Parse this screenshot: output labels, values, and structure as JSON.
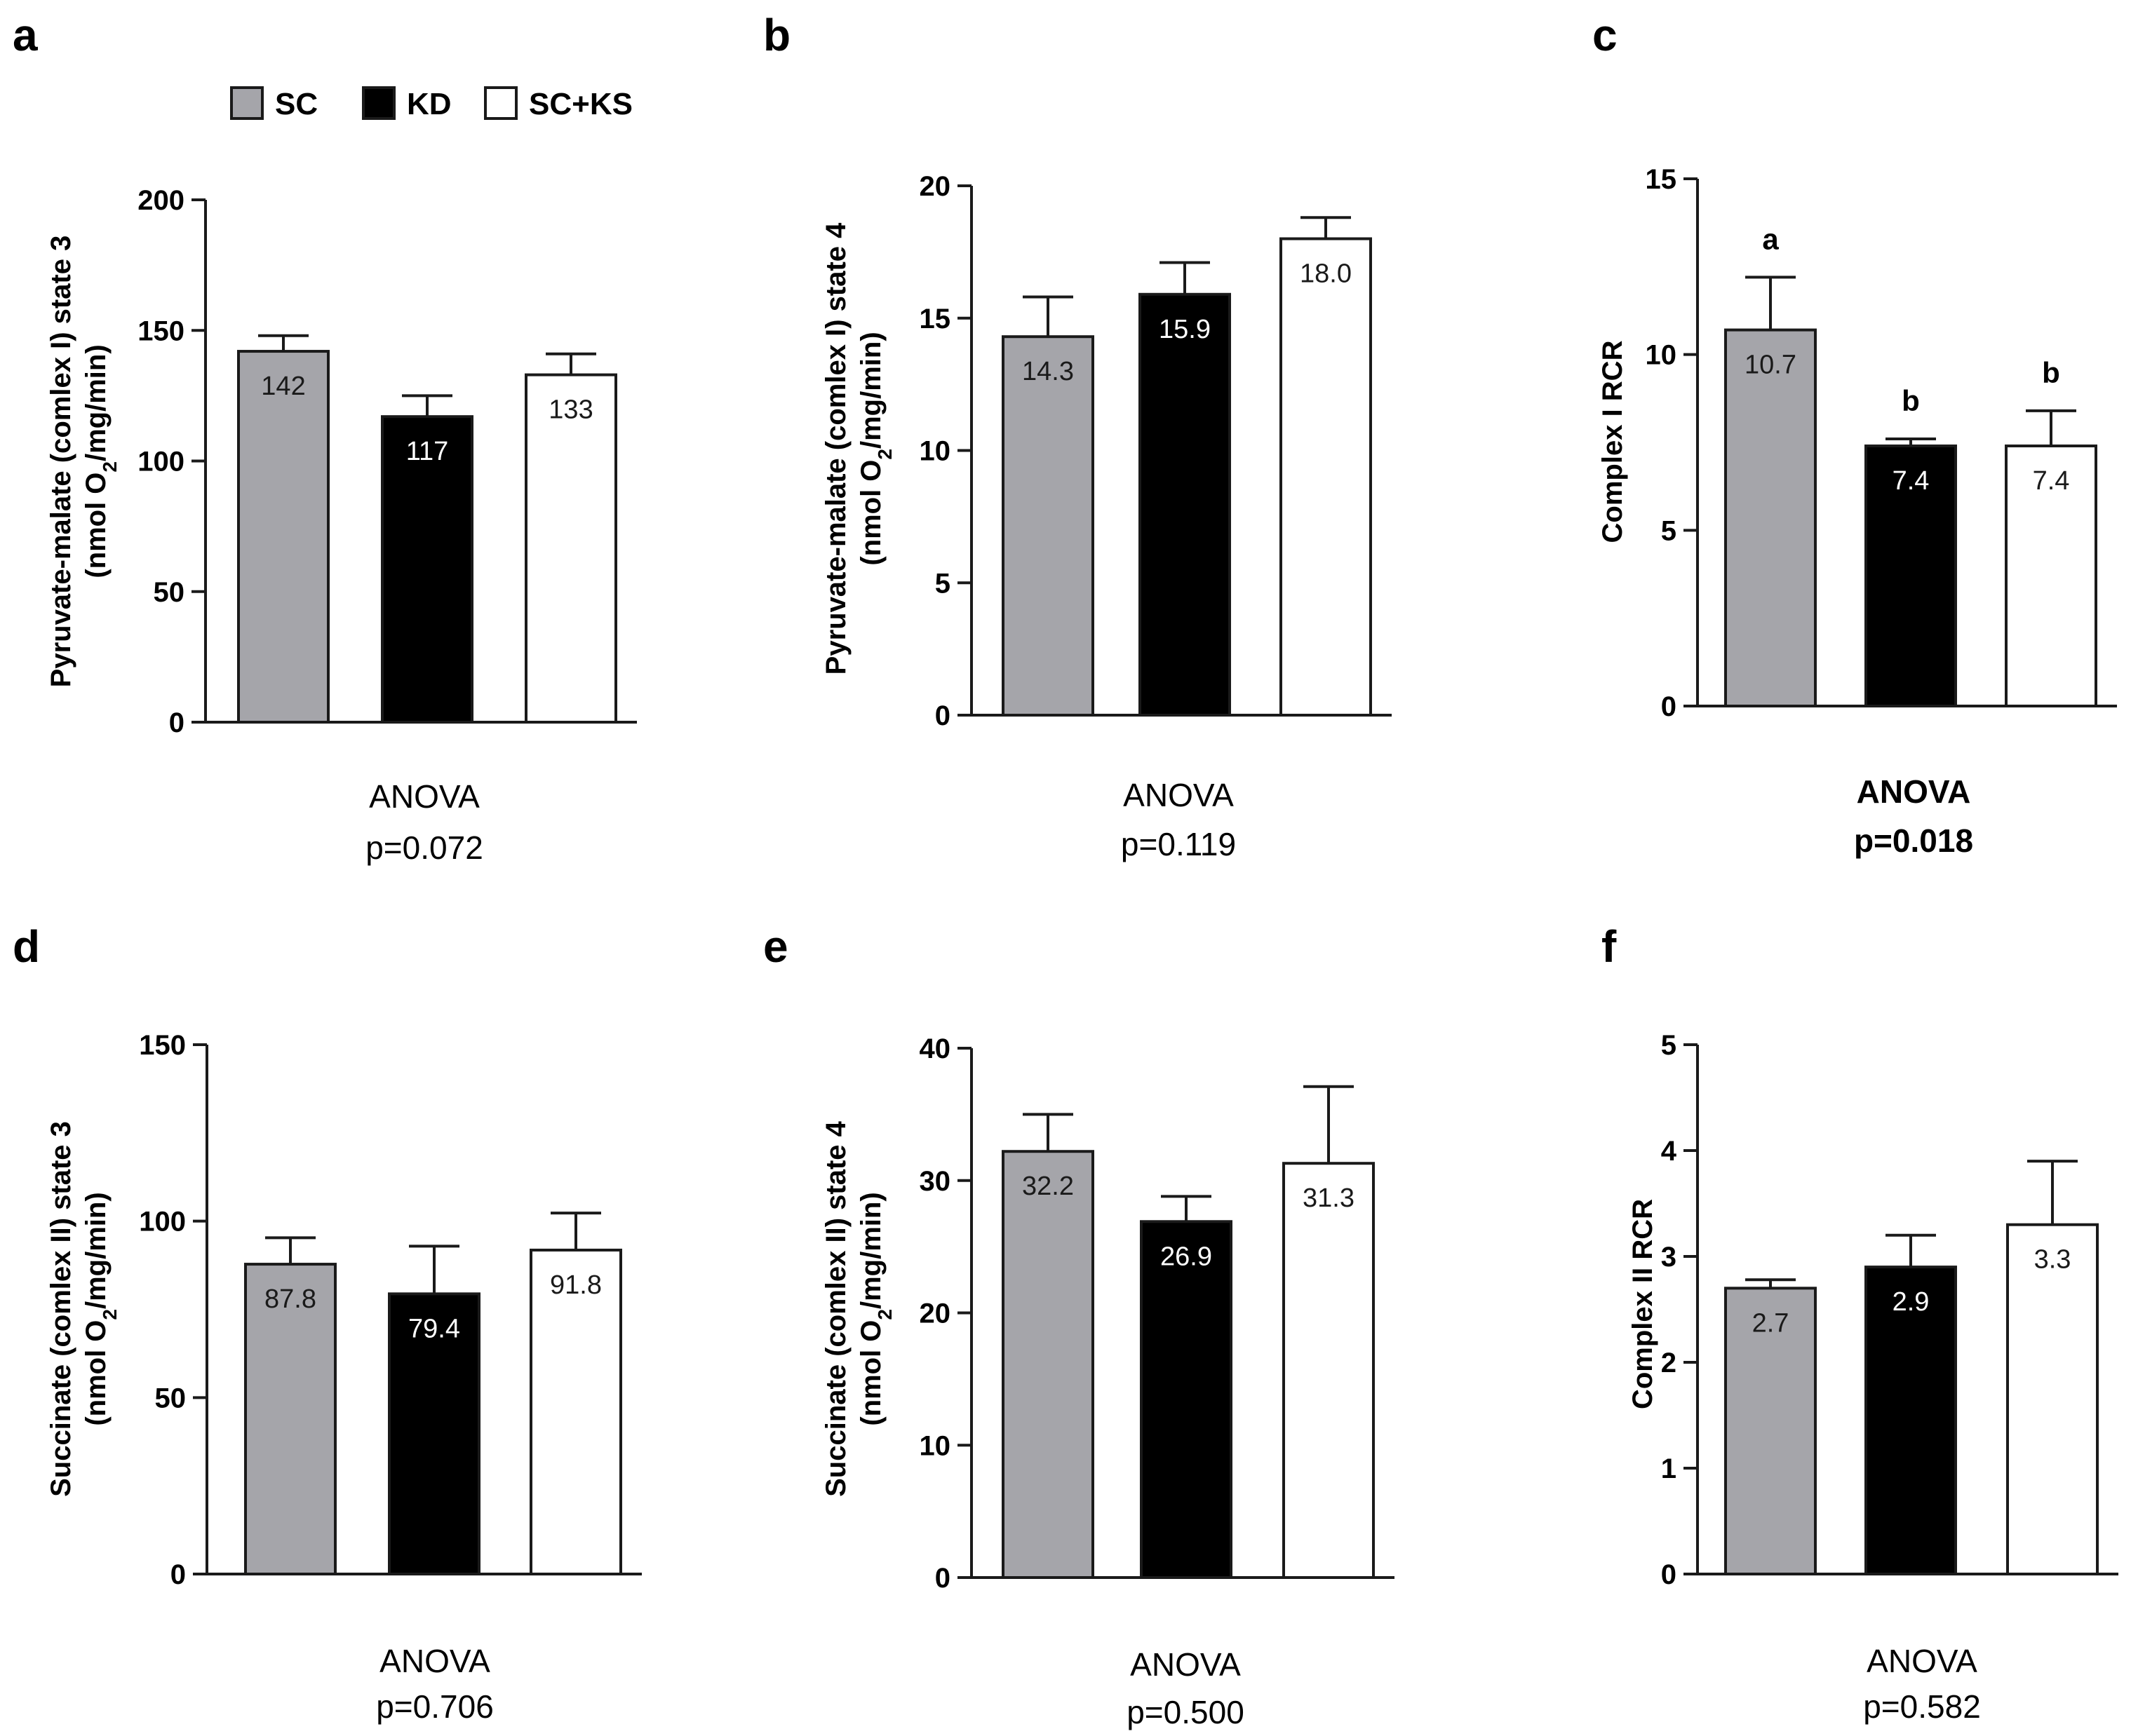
{
  "colors": {
    "SC": "#a5a5aa",
    "KD": "#000000",
    "SC+KS": "#ffffff",
    "stroke": "#1a1a1a"
  },
  "legend": [
    {
      "name": "SC",
      "color": "#a5a5aa"
    },
    {
      "name": "KD",
      "color": "#000000"
    },
    {
      "name": "SC+KS",
      "color": "#ffffff"
    }
  ],
  "chart_data": [
    {
      "type": "bar",
      "panel": "a",
      "categories": [
        "SC",
        "KD",
        "SC+KS"
      ],
      "values": [
        142,
        117,
        133
      ],
      "errors": [
        6,
        8,
        8
      ],
      "value_labels": [
        "142",
        "117",
        "133"
      ],
      "ylabel": "Pyruvate-malate (comlex I) state 3",
      "ylabel2_pre": "(nmol O",
      "ylabel2_sub": "2",
      "ylabel2_post": "/mg/min)",
      "ylim": [
        0,
        200
      ],
      "yticks": [
        0,
        50,
        100,
        150,
        200
      ],
      "sig_letters": [
        "",
        "",
        ""
      ],
      "anova": "ANOVA",
      "pvalue": "p=0.072",
      "bold_stat": false
    },
    {
      "type": "bar",
      "panel": "b",
      "categories": [
        "SC",
        "KD",
        "SC+KS"
      ],
      "values": [
        14.3,
        15.9,
        18.0
      ],
      "errors": [
        1.5,
        1.2,
        0.8
      ],
      "value_labels": [
        "14.3",
        "15.9",
        "18.0"
      ],
      "ylabel": "Pyruvate-malate (comlex I) state 4",
      "ylabel2_pre": "(nmol O",
      "ylabel2_sub": "2",
      "ylabel2_post": "/mg/min)",
      "ylim": [
        0,
        20
      ],
      "yticks": [
        0,
        5,
        10,
        15,
        20
      ],
      "sig_letters": [
        "",
        "",
        ""
      ],
      "anova": "ANOVA",
      "pvalue": "p=0.119",
      "bold_stat": false
    },
    {
      "type": "bar",
      "panel": "c",
      "categories": [
        "SC",
        "KD",
        "SC+KS"
      ],
      "values": [
        10.7,
        7.4,
        7.4
      ],
      "errors": [
        1.5,
        0.2,
        1.0
      ],
      "value_labels": [
        "10.7",
        "7.4",
        "7.4"
      ],
      "ylabel": "Complex I RCR",
      "ylim": [
        0,
        15
      ],
      "yticks": [
        0,
        5,
        10,
        15
      ],
      "sig_letters": [
        "a",
        "b",
        "b"
      ],
      "anova": "ANOVA",
      "pvalue": "p=0.018",
      "bold_stat": true
    },
    {
      "type": "bar",
      "panel": "d",
      "categories": [
        "SC",
        "KD",
        "SC+KS"
      ],
      "values": [
        87.8,
        79.4,
        91.8
      ],
      "errors": [
        7.5,
        13.5,
        10.5
      ],
      "value_labels": [
        "87.8",
        "79.4",
        "91.8"
      ],
      "ylabel": "Succinate (comlex II) state 3",
      "ylabel2_pre": "(nmol O",
      "ylabel2_sub": "2",
      "ylabel2_post": "/mg/min)",
      "ylim": [
        0,
        150
      ],
      "yticks": [
        0,
        50,
        100,
        150
      ],
      "sig_letters": [
        "",
        "",
        ""
      ],
      "anova": "ANOVA",
      "pvalue": "p=0.706",
      "bold_stat": false
    },
    {
      "type": "bar",
      "panel": "e",
      "categories": [
        "SC",
        "KD",
        "SC+KS"
      ],
      "values": [
        32.2,
        26.9,
        31.3
      ],
      "errors": [
        2.8,
        1.9,
        5.8
      ],
      "value_labels": [
        "32.2",
        "26.9",
        "31.3"
      ],
      "ylabel": "Succinate (comlex II) state 4",
      "ylabel2_pre": "(nmol O",
      "ylabel2_sub": "2",
      "ylabel2_post": "/mg/min)",
      "ylim": [
        0,
        40
      ],
      "yticks": [
        0,
        10,
        20,
        30,
        40
      ],
      "sig_letters": [
        "",
        "",
        ""
      ],
      "anova": "ANOVA",
      "pvalue": "p=0.500",
      "bold_stat": false
    },
    {
      "type": "bar",
      "panel": "f",
      "categories": [
        "SC",
        "KD",
        "SC+KS"
      ],
      "values": [
        2.7,
        2.9,
        3.3
      ],
      "errors": [
        0.08,
        0.3,
        0.6
      ],
      "value_labels": [
        "2.7",
        "2.9",
        "3.3"
      ],
      "ylabel": "Complex II RCR",
      "ylim": [
        0,
        5
      ],
      "yticks": [
        0,
        1,
        2,
        3,
        4,
        5
      ],
      "sig_letters": [
        "",
        "",
        ""
      ],
      "anova": "ANOVA",
      "pvalue": "p=0.582",
      "bold_stat": false
    }
  ]
}
